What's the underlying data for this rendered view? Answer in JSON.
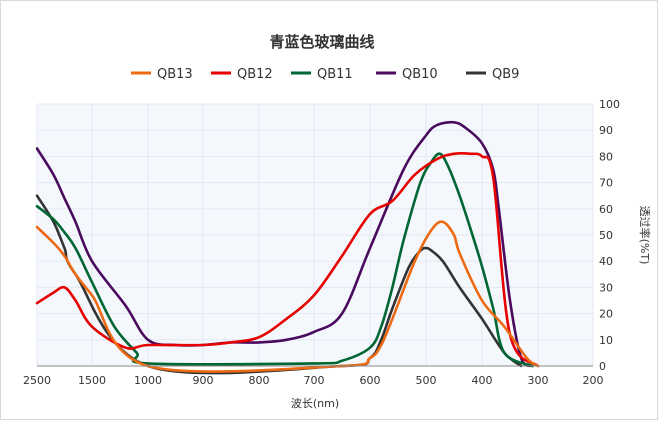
{
  "chart_data": {
    "type": "line",
    "title": "青蓝色玻璃曲线",
    "xlabel": "波长(nm)",
    "ylabel": "透过率(%T)",
    "x_axis": {
      "reversed": true,
      "ticks": [
        "200",
        "300",
        "400",
        "500",
        "600",
        "700",
        "800",
        "900",
        "1000",
        "1500",
        "2500"
      ]
    },
    "y_axis": {
      "min": 0,
      "max": 100,
      "ticks": [
        0,
        10,
        20,
        30,
        40,
        50,
        60,
        70,
        80,
        90,
        100
      ],
      "position": "right"
    },
    "grid": true,
    "legend_position": "top-center",
    "series": [
      {
        "name": "QB9",
        "color": "#333333",
        "points": [
          [
            330,
            0
          ],
          [
            360,
            5
          ],
          [
            400,
            18
          ],
          [
            440,
            30
          ],
          [
            470,
            40
          ],
          [
            490,
            44
          ],
          [
            500,
            45
          ],
          [
            510,
            44
          ],
          [
            530,
            38
          ],
          [
            560,
            22
          ],
          [
            580,
            10
          ],
          [
            600,
            3
          ],
          [
            650,
            0
          ],
          [
            1000,
            0
          ],
          [
            1800,
            35
          ],
          [
            2000,
            45
          ],
          [
            2200,
            55
          ],
          [
            2500,
            65
          ]
        ]
      },
      {
        "name": "QB10",
        "color": "#4a0a5e",
        "points": [
          [
            310,
            0
          ],
          [
            330,
            3
          ],
          [
            350,
            25
          ],
          [
            370,
            60
          ],
          [
            380,
            75
          ],
          [
            400,
            85
          ],
          [
            430,
            91
          ],
          [
            450,
            93
          ],
          [
            480,
            92
          ],
          [
            500,
            88
          ],
          [
            540,
            75
          ],
          [
            600,
            45
          ],
          [
            650,
            20
          ],
          [
            700,
            13
          ],
          [
            750,
            10
          ],
          [
            800,
            9
          ],
          [
            850,
            9
          ],
          [
            900,
            8
          ],
          [
            950,
            8
          ],
          [
            1000,
            10
          ],
          [
            1200,
            23
          ],
          [
            1500,
            40
          ],
          [
            1800,
            55
          ],
          [
            2000,
            64
          ],
          [
            2200,
            73
          ],
          [
            2500,
            83
          ]
        ]
      },
      {
        "name": "QB11",
        "color": "#006633",
        "points": [
          [
            310,
            0
          ],
          [
            360,
            5
          ],
          [
            380,
            22
          ],
          [
            400,
            38
          ],
          [
            420,
            52
          ],
          [
            440,
            65
          ],
          [
            460,
            76
          ],
          [
            475,
            81
          ],
          [
            490,
            78
          ],
          [
            510,
            70
          ],
          [
            540,
            48
          ],
          [
            560,
            30
          ],
          [
            580,
            15
          ],
          [
            600,
            7
          ],
          [
            650,
            2
          ],
          [
            700,
            1
          ],
          [
            1000,
            1
          ],
          [
            1100,
            5
          ],
          [
            1300,
            15
          ],
          [
            1500,
            32
          ],
          [
            1800,
            45
          ],
          [
            2000,
            51
          ],
          [
            2200,
            56
          ],
          [
            2500,
            61
          ]
        ]
      },
      {
        "name": "QB12",
        "color": "#e60000",
        "points": [
          [
            300,
            0
          ],
          [
            350,
            12
          ],
          [
            380,
            72
          ],
          [
            400,
            80
          ],
          [
            420,
            81
          ],
          [
            450,
            81
          ],
          [
            480,
            79
          ],
          [
            520,
            73
          ],
          [
            560,
            63
          ],
          [
            600,
            58
          ],
          [
            650,
            42
          ],
          [
            700,
            27
          ],
          [
            750,
            18
          ],
          [
            800,
            11
          ],
          [
            850,
            9
          ],
          [
            900,
            8
          ],
          [
            1000,
            8
          ],
          [
            1200,
            7
          ],
          [
            1500,
            15
          ],
          [
            1800,
            25
          ],
          [
            2000,
            30
          ],
          [
            2200,
            28
          ],
          [
            2500,
            24
          ]
        ]
      },
      {
        "name": "QB13",
        "color": "#ed6a12",
        "points": [
          [
            300,
            0
          ],
          [
            320,
            3
          ],
          [
            360,
            15
          ],
          [
            400,
            25
          ],
          [
            440,
            43
          ],
          [
            450,
            50
          ],
          [
            470,
            55
          ],
          [
            490,
            52
          ],
          [
            520,
            40
          ],
          [
            560,
            18
          ],
          [
            580,
            8
          ],
          [
            600,
            3
          ],
          [
            650,
            0
          ],
          [
            1000,
            0
          ],
          [
            1500,
            27
          ],
          [
            1800,
            35
          ],
          [
            2000,
            42
          ],
          [
            2200,
            47
          ],
          [
            2500,
            53
          ]
        ]
      }
    ]
  }
}
